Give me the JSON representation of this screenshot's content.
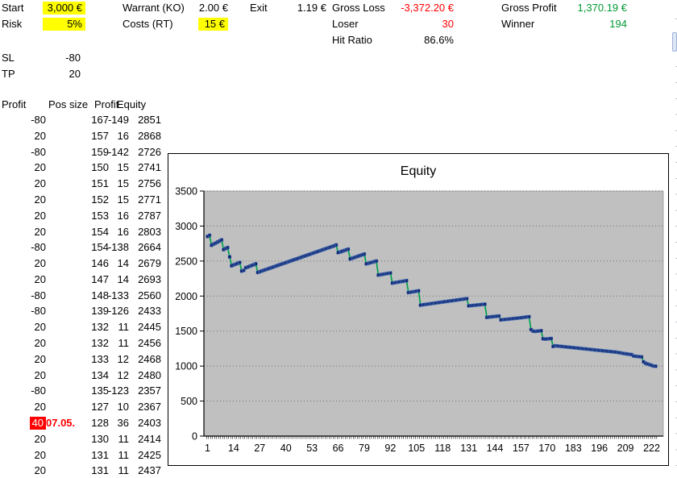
{
  "params": {
    "start": {
      "label": "Start",
      "value": "3,000 €"
    },
    "risk": {
      "label": "Risk",
      "value": "5%"
    },
    "warrant": {
      "label": "Warrant (KO)",
      "value": "2.00 €"
    },
    "costs": {
      "label": "Costs (RT)",
      "value": "15 €"
    },
    "exit": {
      "label": "Exit",
      "value": "1.19 €"
    },
    "sl": {
      "label": "SL",
      "value": "-80"
    },
    "tp": {
      "label": "TP",
      "value": "20"
    }
  },
  "stats": {
    "gross_loss": {
      "label": "Gross Loss",
      "value": "-3,372.20 €"
    },
    "loser": {
      "label": "Loser",
      "value": "30"
    },
    "hit_ratio": {
      "label": "Hit Ratio",
      "value": "86.6%"
    },
    "gross_profit": {
      "label": "Gross Profit",
      "value": "1,370.19 €"
    },
    "winner": {
      "label": "Winner",
      "value": "194"
    }
  },
  "trade_table": {
    "headers": [
      "Profit",
      "Pos size",
      "Profit",
      "Equity"
    ],
    "rows": [
      [
        -80,
        167,
        -149,
        2851
      ],
      [
        20,
        157,
        16,
        2868
      ],
      [
        -80,
        159,
        -142,
        2726
      ],
      [
        20,
        150,
        15,
        2741
      ],
      [
        20,
        151,
        15,
        2756
      ],
      [
        20,
        152,
        15,
        2771
      ],
      [
        20,
        153,
        16,
        2787
      ],
      [
        20,
        154,
        16,
        2803
      ],
      [
        -80,
        154,
        -138,
        2664
      ],
      [
        20,
        146,
        14,
        2679
      ],
      [
        20,
        147,
        14,
        2693
      ],
      [
        -80,
        148,
        -133,
        2560
      ],
      [
        -80,
        139,
        -126,
        2433
      ],
      [
        20,
        132,
        11,
        2445
      ],
      [
        20,
        132,
        11,
        2456
      ],
      [
        20,
        133,
        12,
        2468
      ],
      [
        20,
        134,
        12,
        2480
      ],
      [
        -80,
        135,
        -123,
        2357
      ],
      [
        20,
        127,
        10,
        2367
      ],
      [
        40,
        128,
        36,
        2403
      ],
      [
        20,
        130,
        11,
        2414
      ],
      [
        20,
        131,
        11,
        2425
      ],
      [
        20,
        131,
        11,
        2437
      ]
    ],
    "flagged_row_index": 19,
    "flag_note": "07.05."
  },
  "chart_data": {
    "type": "line",
    "title": "Equity",
    "xlabel": "",
    "ylabel": "",
    "x_count": 224,
    "x_tick_labels": [
      1,
      14,
      27,
      40,
      53,
      66,
      79,
      92,
      105,
      118,
      131,
      144,
      157,
      170,
      183,
      196,
      209,
      222
    ],
    "y_ticks": [
      0,
      500,
      1000,
      1500,
      2000,
      2500,
      3000,
      3500
    ],
    "ylim": [
      0,
      3500
    ],
    "grid": "dotted-horizontal",
    "legend": false,
    "series": [
      {
        "name": "Equity",
        "values": [
          2851,
          2868,
          2726,
          2741,
          2756,
          2771,
          2787,
          2803,
          2664,
          2679,
          2693,
          2560,
          2433,
          2445,
          2456,
          2468,
          2480,
          2357,
          2367,
          2403,
          2414,
          2425,
          2437,
          2448,
          2460,
          2337,
          2348,
          2358,
          2368,
          2378,
          2388,
          2398,
          2408,
          2418,
          2428,
          2438,
          2448,
          2458,
          2468,
          2478,
          2488,
          2498,
          2508,
          2518,
          2528,
          2538,
          2548,
          2558,
          2568,
          2578,
          2588,
          2598,
          2608,
          2618,
          2628,
          2638,
          2648,
          2658,
          2668,
          2678,
          2688,
          2698,
          2708,
          2718,
          2730,
          2620,
          2630,
          2640,
          2650,
          2660,
          2670,
          2530,
          2540,
          2550,
          2560,
          2570,
          2580,
          2590,
          2600,
          2460,
          2468,
          2476,
          2484,
          2492,
          2500,
          2300,
          2305,
          2310,
          2315,
          2320,
          2325,
          2330,
          2185,
          2190,
          2195,
          2200,
          2205,
          2210,
          2215,
          2220,
          2050,
          2055,
          2060,
          2065,
          2070,
          2075,
          1870,
          1875,
          1879,
          1883,
          1887,
          1891,
          1895,
          1899,
          1903,
          1907,
          1911,
          1915,
          1919,
          1923,
          1927,
          1931,
          1935,
          1939,
          1943,
          1947,
          1951,
          1955,
          1959,
          1963,
          1860,
          1863,
          1866,
          1869,
          1872,
          1875,
          1878,
          1881,
          1884,
          1695,
          1700,
          1703,
          1706,
          1709,
          1712,
          1715,
          1660,
          1663,
          1666,
          1669,
          1672,
          1675,
          1678,
          1681,
          1684,
          1687,
          1690,
          1694,
          1698,
          1702,
          1705,
          1520,
          1500,
          1495,
          1498,
          1502,
          1505,
          1390,
          1385,
          1388,
          1391,
          1394,
          1280,
          1290,
          1287,
          1284,
          1281,
          1278,
          1275,
          1272,
          1269,
          1266,
          1263,
          1260,
          1257,
          1254,
          1251,
          1248,
          1245,
          1242,
          1239,
          1236,
          1233,
          1230,
          1227,
          1224,
          1221,
          1218,
          1215,
          1212,
          1209,
          1206,
          1203,
          1200,
          1196,
          1191,
          1186,
          1180,
          1176,
          1172,
          1168,
          1164,
          1145,
          1140,
          1137,
          1134,
          1131,
          1060,
          1040,
          1030,
          1020,
          1010,
          1000,
          998
        ]
      }
    ]
  },
  "colors": {
    "highlight": "#FFFF00",
    "negative": "#FF0000",
    "positive": "#009933",
    "flag_bg": "#FF0000",
    "flag_text": "#FFFFFF",
    "plot_bg": "#C0C0C0",
    "gridline": "#707070",
    "line": "#00A14B",
    "marker": "#121F6B"
  }
}
